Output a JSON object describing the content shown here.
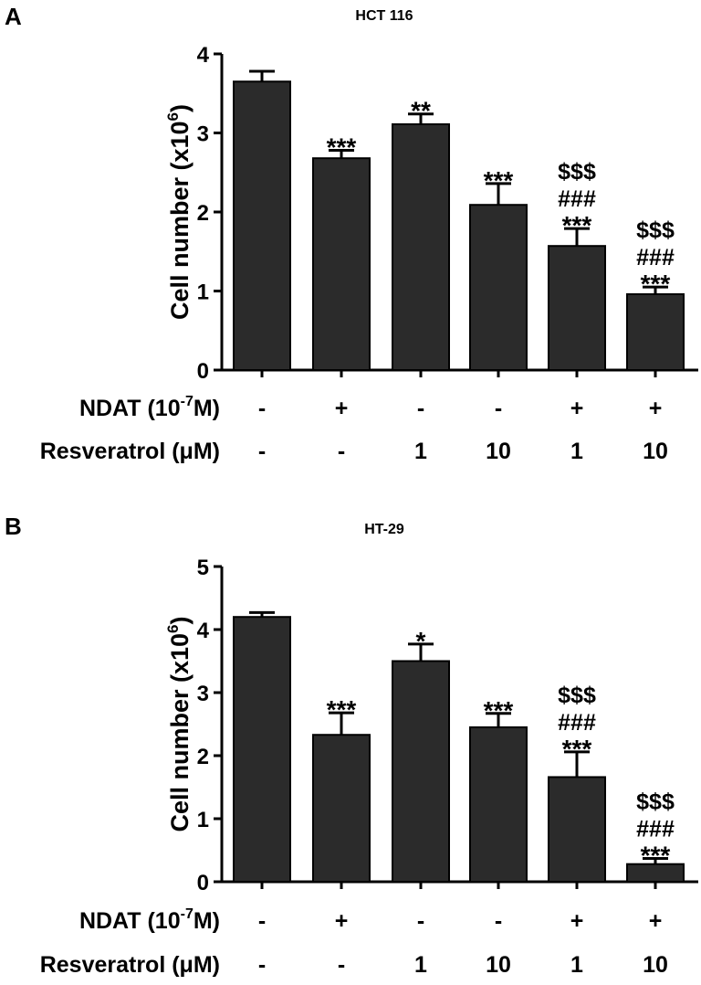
{
  "chart_data": [
    {
      "type": "bar",
      "panel": "A",
      "title": "HCT 116",
      "ylabel": "Cell number (x10",
      "ylabel_sup": "6",
      "ylabel_end": ")",
      "ylim": [
        0,
        4
      ],
      "yticks": [
        0,
        1,
        2,
        3,
        4
      ],
      "values": [
        3.65,
        2.68,
        3.11,
        2.09,
        1.57,
        0.96
      ],
      "errors": [
        0.13,
        0.1,
        0.13,
        0.27,
        0.22,
        0.09
      ],
      "annotations": [
        [],
        [
          "***"
        ],
        [
          "**"
        ],
        [
          "***"
        ],
        [
          "$$$",
          "###",
          "***"
        ],
        [
          "$$$",
          "###",
          "***"
        ]
      ],
      "rows": [
        {
          "label": "NDAT (10",
          "label_sup": "-7",
          "label_end": "M)",
          "values": [
            "-",
            "+",
            "-",
            "-",
            "+",
            "+"
          ]
        },
        {
          "label": "Resveratrol (μM)",
          "values": [
            "-",
            "-",
            "1",
            "10",
            "1",
            "10"
          ]
        }
      ]
    },
    {
      "type": "bar",
      "panel": "B",
      "title": "HT-29",
      "ylabel": "Cell number (x10",
      "ylabel_sup": "6",
      "ylabel_end": ")",
      "ylim": [
        0,
        5
      ],
      "yticks": [
        0,
        1,
        2,
        3,
        4,
        5
      ],
      "values": [
        4.2,
        2.33,
        3.5,
        2.45,
        1.66,
        0.28
      ],
      "errors": [
        0.07,
        0.35,
        0.27,
        0.22,
        0.4,
        0.09
      ],
      "annotations": [
        [],
        [
          "***"
        ],
        [
          "*"
        ],
        [
          "***"
        ],
        [
          "$$$",
          "###",
          "***"
        ],
        [
          "$$$",
          "###",
          "***"
        ]
      ],
      "rows": [
        {
          "label": "NDAT (10",
          "label_sup": "-7",
          "label_end": "M)",
          "values": [
            "-",
            "+",
            "-",
            "-",
            "+",
            "+"
          ]
        },
        {
          "label": "Resveratrol (μM)",
          "values": [
            "-",
            "-",
            "1",
            "10",
            "1",
            "10"
          ]
        }
      ]
    }
  ],
  "colors": {
    "bar": "#2b2b2b",
    "axis": "#000000"
  }
}
